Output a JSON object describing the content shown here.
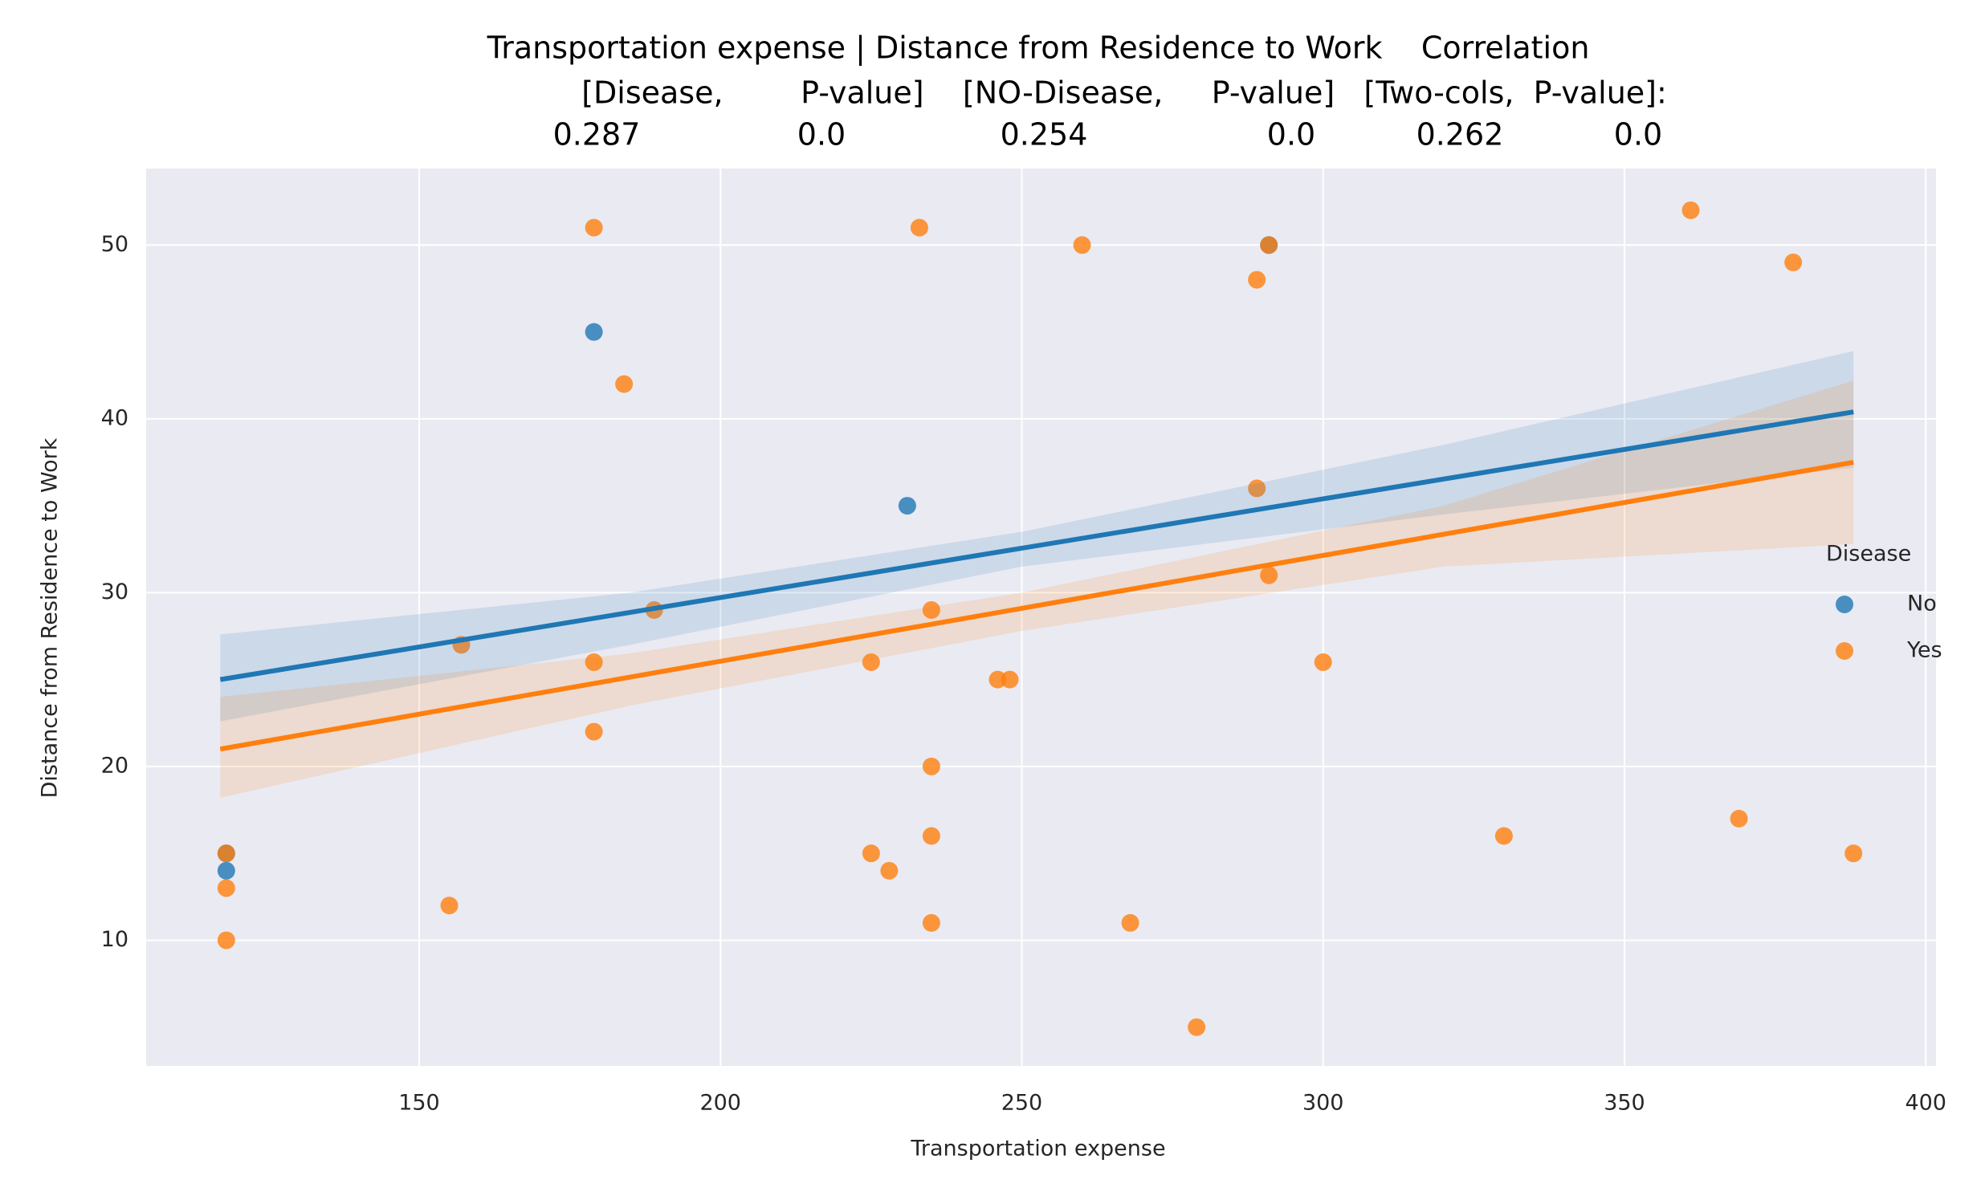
{
  "chart_data": {
    "type": "scatter",
    "title": [
      "Transportation expense | Distance from Residence to Work    Correlation",
      "[Disease,        P-value]    [NO-Disease,     P-value]   [Two-cols,  P-value]:",
      [
        "0.287",
        "0.0",
        "0.254",
        "0.0",
        "0.262",
        "0.0"
      ]
    ],
    "x_label": "Transportation expense",
    "y_label": "Distance from Residence to Work",
    "xlim": [
      104.7,
      401.7
    ],
    "ylim": [
      2.77,
      54.4
    ],
    "xticks": [
      150,
      200,
      250,
      300,
      350,
      400
    ],
    "yticks": [
      10,
      20,
      30,
      40,
      50
    ],
    "grid": true,
    "legend_title": "Disease",
    "legend_position": "right",
    "series": [
      {
        "name": "No",
        "color": "#1f77b4",
        "x": [
          179,
          231,
          118,
          291,
          118
        ],
        "y": [
          45,
          35,
          14,
          50,
          15
        ],
        "fit_x": [
          117,
          388
        ],
        "fit_y": [
          25,
          40.4
        ],
        "band_x": [
          117,
          185,
          250,
          320,
          388
        ],
        "band_lower": [
          22.6,
          27,
          31.5,
          34.5,
          37.2
        ],
        "band_upper": [
          27.6,
          30,
          33.5,
          38.5,
          43.9
        ]
      },
      {
        "name": "Yes",
        "color": "#ff7f0e",
        "x": [
          179,
          233,
          260,
          291,
          289,
          361,
          378,
          184,
          289,
          291,
          189,
          235,
          157,
          179,
          225,
          300,
          246,
          248,
          179,
          235,
          118,
          225,
          228,
          118,
          235,
          330,
          369,
          388,
          155,
          235,
          268,
          118,
          279
        ],
        "y": [
          51,
          51,
          50,
          50,
          48,
          52,
          49,
          42,
          36,
          31,
          29,
          29,
          27,
          26,
          26,
          26,
          25,
          25,
          22,
          20,
          15,
          15,
          14,
          13,
          16,
          16,
          17,
          15,
          12,
          11,
          11,
          10,
          5
        ],
        "fit_x": [
          117,
          388
        ],
        "fit_y": [
          21,
          37.5
        ],
        "band_x": [
          117,
          185,
          250,
          320,
          388
        ],
        "band_lower": [
          18.2,
          23.5,
          27.8,
          31.5,
          32.8
        ],
        "band_upper": [
          24,
          26.5,
          30,
          35,
          42.2
        ]
      }
    ]
  }
}
